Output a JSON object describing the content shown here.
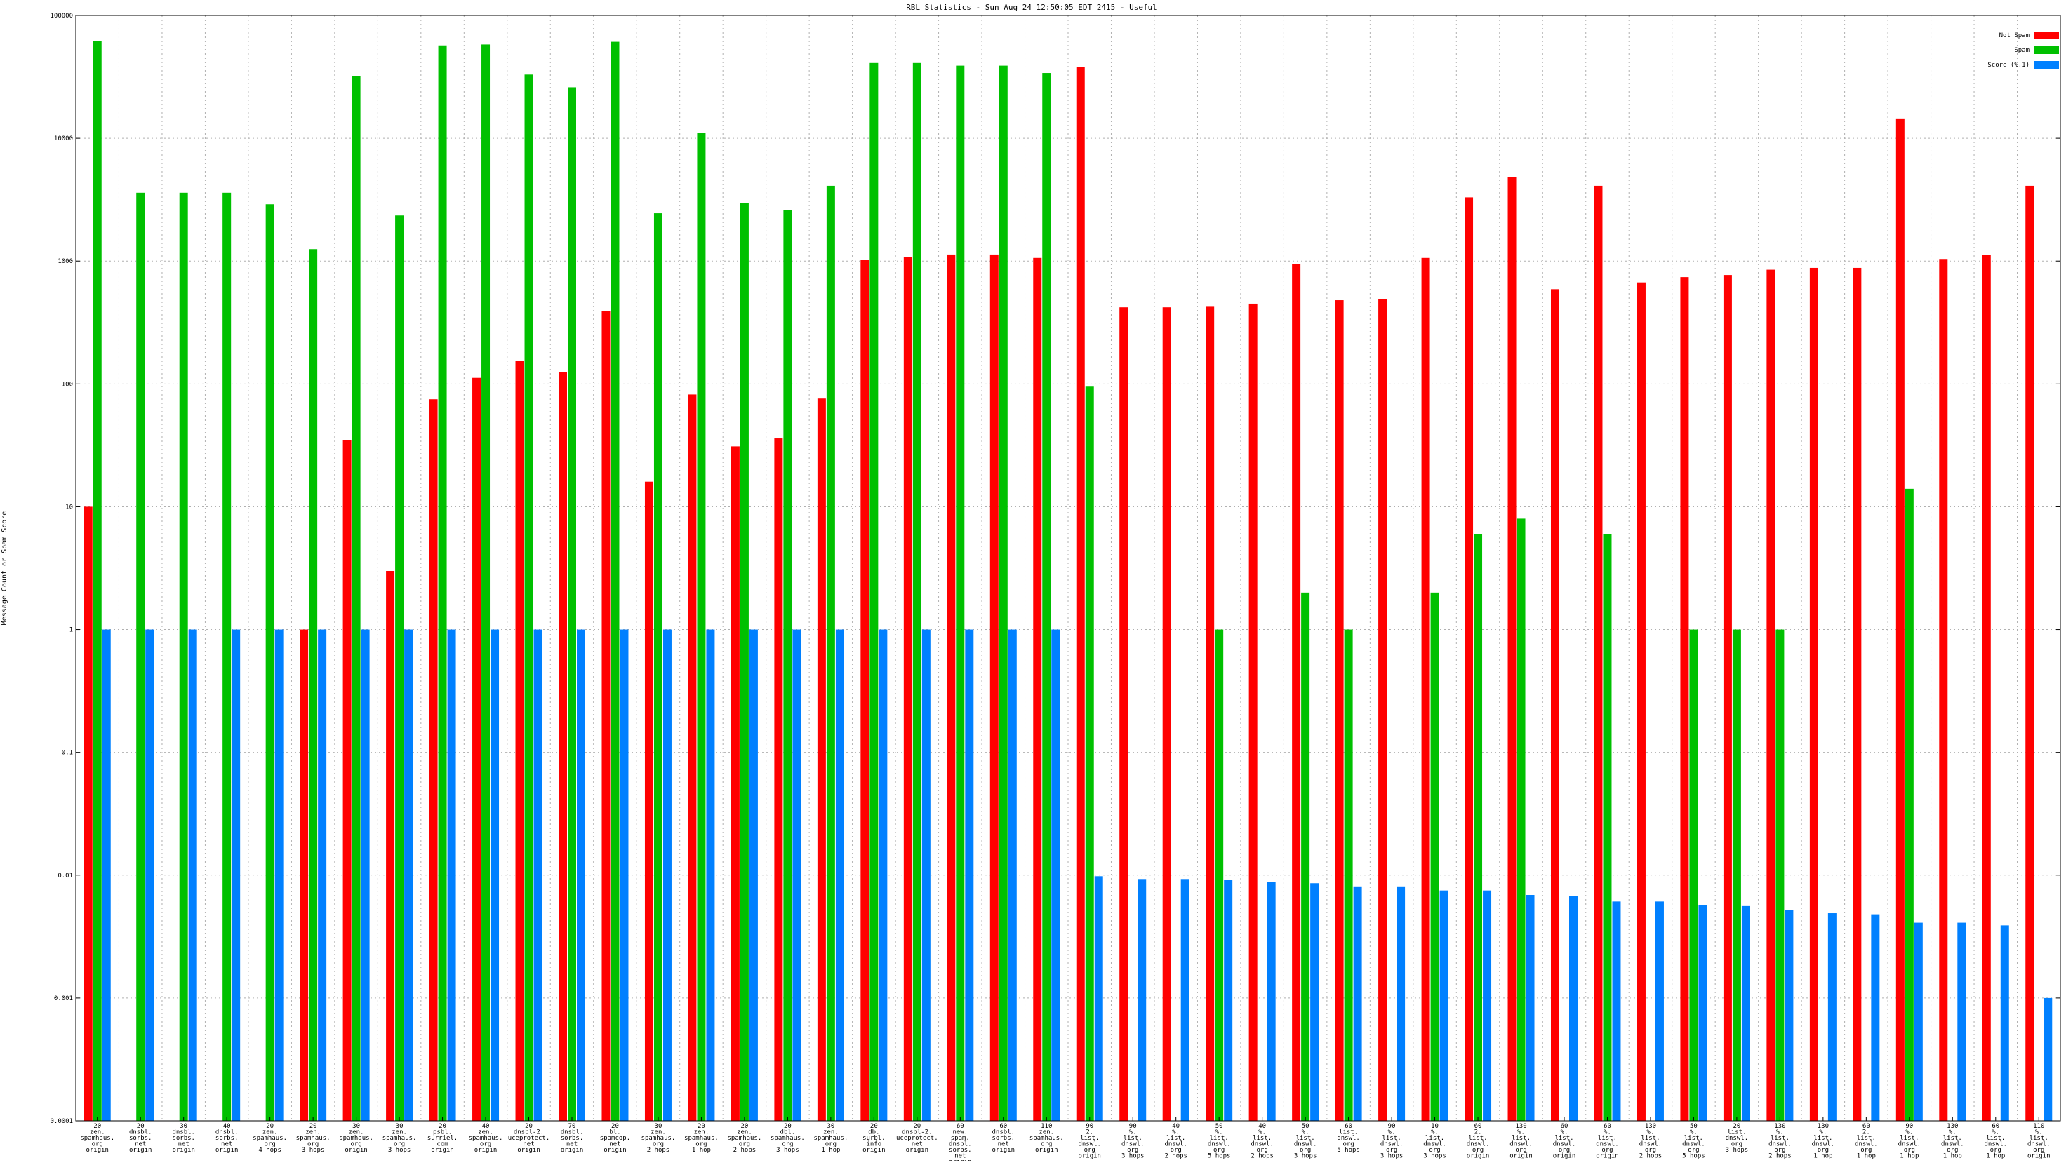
{
  "chart_data": {
    "type": "bar",
    "title": "RBL Statistics - Sun Aug 24 12:50:05 EDT 2415 - Useful",
    "ylabel": "Message Count or Spam Score",
    "xlabel": "",
    "yscale": "log",
    "ylim": [
      0.0001,
      100000
    ],
    "yticks": [
      "100000",
      "10000",
      "1000",
      "100",
      "10",
      "1",
      "0.1",
      "0.01",
      "0.001",
      "0.0001"
    ],
    "grid": true,
    "legend_position": "top-right",
    "categories": [
      [
        "20",
        "zen.",
        "spamhaus.",
        "org",
        "origin"
      ],
      [
        "20",
        "dnsbl.",
        "sorbs.",
        "net",
        "origin"
      ],
      [
        "30",
        "dnsbl.",
        "sorbs.",
        "net",
        "origin"
      ],
      [
        "40",
        "dnsbl.",
        "sorbs.",
        "net",
        "origin"
      ],
      [
        "20",
        "zen.",
        "spamhaus.",
        "org",
        "4 hops"
      ],
      [
        "20",
        "zen.",
        "spamhaus.",
        "org",
        "3 hops"
      ],
      [
        "30",
        "zen.",
        "spamhaus.",
        "org",
        "origin"
      ],
      [
        "30",
        "zen.",
        "spamhaus.",
        "org",
        "3 hops"
      ],
      [
        "20",
        "psbl.",
        "surriel.",
        "com",
        "origin"
      ],
      [
        "40",
        "zen.",
        "spamhaus.",
        "org",
        "origin"
      ],
      [
        "20",
        "dnsbl-2.",
        "uceprotect.",
        "net",
        "origin"
      ],
      [
        "70",
        "dnsbl.",
        "sorbs.",
        "net",
        "origin"
      ],
      [
        "20",
        "bl.",
        "spamcop.",
        "net",
        "origin"
      ],
      [
        "30",
        "zen.",
        "spamhaus.",
        "org",
        "2 hops"
      ],
      [
        "20",
        "zen.",
        "spamhaus.",
        "org",
        "1 hop"
      ],
      [
        "20",
        "zen.",
        "spamhaus.",
        "org",
        "2 hops"
      ],
      [
        "20",
        "dbl.",
        "spamhaus.",
        "org",
        "3 hops"
      ],
      [
        "30",
        "zen.",
        "spamhaus.",
        "org",
        "1 hop"
      ],
      [
        "20",
        "db.",
        "surbl.",
        "info",
        "origin"
      ],
      [
        "20",
        "dnsbl-2.",
        "uceprotect.",
        "net",
        "origin"
      ],
      [
        "60",
        "new.",
        "spam.",
        "dnsbl.",
        "sorbs.",
        "net",
        "origin"
      ],
      [
        "60",
        "dnsbl.",
        "sorbs.",
        "net",
        "origin"
      ],
      [
        "110",
        "zen.",
        "spamhaus.",
        "org",
        "origin"
      ],
      [
        "90",
        "2.",
        "list.",
        "dnswl.",
        "org",
        "origin"
      ],
      [
        "90",
        "%.",
        "list.",
        "dnswl.",
        "org",
        "3 hops"
      ],
      [
        "40",
        "%.",
        "list.",
        "dnswl.",
        "org",
        "2 hops"
      ],
      [
        "50",
        "%.",
        "list.",
        "dnswl.",
        "org",
        "5 hops"
      ],
      [
        "40",
        "%.",
        "list.",
        "dnswl.",
        "org",
        "2 hops"
      ],
      [
        "50",
        "%.",
        "list.",
        "dnswl.",
        "org",
        "3 hops"
      ],
      [
        "60",
        "list.",
        "dnswl.",
        "org",
        "5 hops"
      ],
      [
        "90",
        "%.",
        "list.",
        "dnswl.",
        "org",
        "3 hops"
      ],
      [
        "10",
        "%.",
        "list.",
        "dnswl.",
        "org",
        "3 hops"
      ],
      [
        "60",
        "2.",
        "list.",
        "dnswl.",
        "org",
        "origin"
      ],
      [
        "130",
        "%.",
        "list.",
        "dnswl.",
        "org",
        "origin"
      ],
      [
        "60",
        "%.",
        "list.",
        "dnswl.",
        "org",
        "origin"
      ],
      [
        "60",
        "%.",
        "list.",
        "dnswl.",
        "org",
        "origin"
      ],
      [
        "130",
        "%.",
        "list.",
        "dnswl.",
        "org",
        "2 hops"
      ],
      [
        "50",
        "%.",
        "list.",
        "dnswl.",
        "org",
        "5 hops"
      ],
      [
        "20",
        "list.",
        "dnswl.",
        "org",
        "3 hops"
      ],
      [
        "130",
        "%.",
        "list.",
        "dnswl.",
        "org",
        "2 hops"
      ],
      [
        "130",
        "%.",
        "list.",
        "dnswl.",
        "org",
        "1 hop"
      ],
      [
        "60",
        "2.",
        "list.",
        "dnswl.",
        "org",
        "1 hop"
      ],
      [
        "90",
        "%.",
        "list.",
        "dnswl.",
        "org",
        "1 hop"
      ],
      [
        "130",
        "%.",
        "list.",
        "dnswl.",
        "org",
        "1 hop"
      ],
      [
        "60",
        "%.",
        "list.",
        "dnswl.",
        "org",
        "1 hop"
      ],
      [
        "110",
        "%.",
        "list.",
        "dnswl.",
        "org",
        "origin"
      ]
    ],
    "series": [
      {
        "name": "Not Spam",
        "color": "#ff0000",
        "values": [
          10,
          null,
          null,
          null,
          null,
          1,
          35,
          3,
          75,
          112,
          155,
          125,
          390,
          16,
          82,
          31,
          36,
          76,
          1020,
          1080,
          1130,
          1130,
          1060,
          38000,
          420,
          420,
          430,
          450,
          940,
          480,
          490,
          1060,
          3300,
          4800,
          590,
          4100,
          670,
          740,
          770,
          850,
          880,
          880,
          14500,
          1040,
          1120,
          4100
        ]
      },
      {
        "name": "Spam",
        "color": "#00c000",
        "values": [
          62000,
          3600,
          3600,
          3600,
          2900,
          1250,
          32000,
          2350,
          57000,
          58000,
          33000,
          26000,
          61000,
          2450,
          11000,
          2950,
          2600,
          4100,
          41000,
          41000,
          39000,
          39000,
          34000,
          95,
          null,
          null,
          1,
          null,
          2,
          1,
          null,
          2,
          6,
          8,
          null,
          6,
          null,
          1,
          1,
          1,
          null,
          null,
          14,
          null,
          null,
          null
        ]
      },
      {
        "name": "Score (%.1)",
        "color": "#0080ff",
        "values": [
          1,
          1,
          1,
          1,
          1,
          1,
          1,
          1,
          1,
          1,
          1,
          1,
          1,
          1,
          1,
          1,
          1,
          1,
          1,
          1,
          1,
          1,
          1,
          0.0098,
          0.0093,
          0.0093,
          0.0091,
          0.0088,
          0.0086,
          0.0081,
          0.0081,
          0.0075,
          0.0075,
          0.0069,
          0.0068,
          0.0061,
          0.0061,
          0.0057,
          0.0056,
          0.0052,
          0.0049,
          0.0048,
          0.0041,
          0.0041,
          0.0039,
          0.001
        ]
      }
    ]
  }
}
